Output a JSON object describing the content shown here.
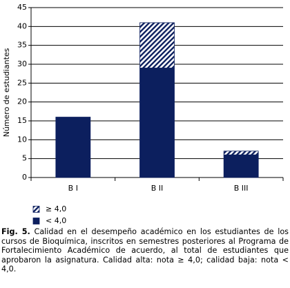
{
  "chart_data": {
    "type": "stacked_bar",
    "y_label": "Número de estudiantes",
    "categories": [
      "B I",
      "B II",
      "B III"
    ],
    "series": [
      {
        "name": "< 4,0",
        "color": "#0c1f5e",
        "hatch": false,
        "values": [
          16,
          29,
          6
        ]
      },
      {
        "name": "≥ 4,0",
        "color": "#0c1f5e",
        "hatch": true,
        "values": [
          0,
          12,
          1
        ]
      }
    ],
    "ylim": [
      0,
      45
    ],
    "yticks": [
      0,
      5,
      10,
      15,
      20,
      25,
      30,
      35,
      40,
      45
    ],
    "grid": true
  },
  "caption": {
    "label": "Fig. 5.",
    "text": "Calidad en el desempeño académico en los estudiantes de los cursos de Bioquímica, inscritos en semestres posteriores al Programa de Fortalecimiento Académico de acuerdo, al total de estudiantes que aprobaron la asignatura. Calidad alta: nota ≥ 4,0; calidad baja: nota < 4,0."
  }
}
